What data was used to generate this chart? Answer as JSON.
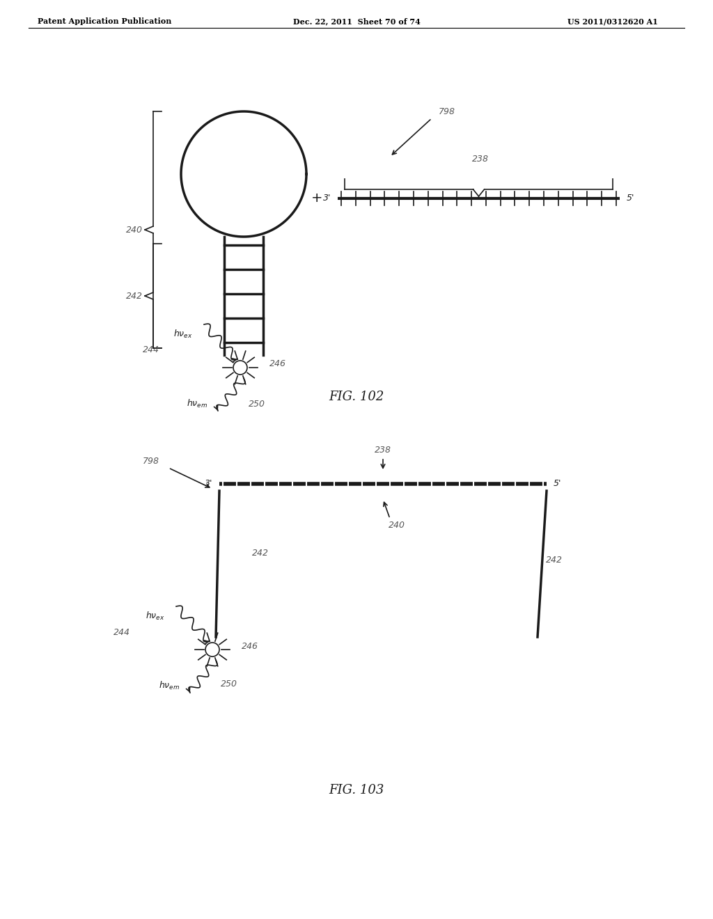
{
  "bg_color": "#ffffff",
  "header_left": "Patent Application Publication",
  "header_mid": "Dec. 22, 2011  Sheet 70 of 74",
  "header_right": "US 2011/0312620 A1",
  "fig102_label": "FIG. 102",
  "fig103_label": "FIG. 103",
  "label_240_top": "240",
  "label_242_top": "242",
  "label_798_top": "798",
  "label_238_top": "238",
  "label_246_top": "246",
  "label_244_top": "244",
  "label_250_top": "250",
  "label_798_bot": "798",
  "label_238_bot": "238",
  "label_240_bot": "240",
  "label_242_bot_left": "242",
  "label_242_bot_right": "242",
  "label_244_bot": "244",
  "label_246_bot": "246",
  "label_250_bot": "250"
}
